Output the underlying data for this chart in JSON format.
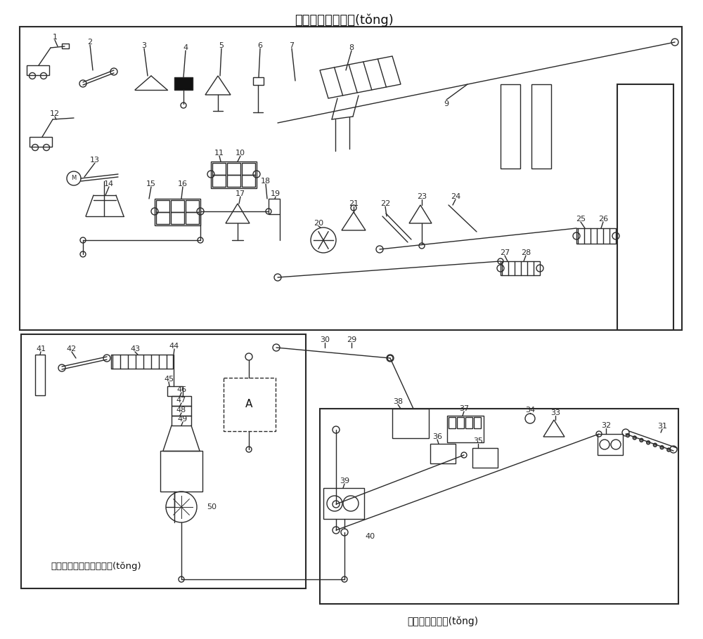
{
  "title": "建筑垃圾處理系統(tǒng)",
  "label_br": "輕物質破碎系統(tǒng)",
  "label_bl": "替代燃料輸送和處理系統(tǒng)",
  "bg": "#ffffff",
  "lc": "#2a2a2a",
  "fw": 10.0,
  "fh": 9.1
}
